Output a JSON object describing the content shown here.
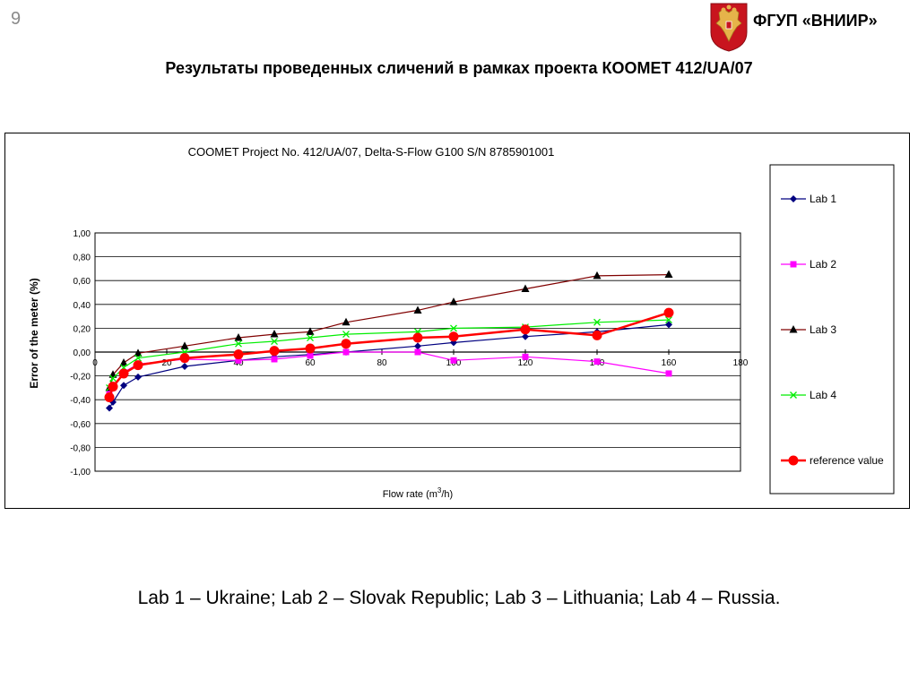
{
  "slide_number": "9",
  "organization": "ФГУП «ВНИИР»",
  "page_title": "Результаты проведенных сличений в рамках проекта КООМЕТ 412/UA/07",
  "footnote": "Lab 1 – Ukraine;  Lab 2 – Slovak Republic; Lab 3 – Lithuania;  Lab 4 – Russia.",
  "chart_data": {
    "type": "line",
    "title": "COOMET Project No. 412/UA/07, Delta-S-Flow G100 S/N 8785901001",
    "xlabel": "Flow rate (m³/h)",
    "xlabel_main": "Flow rate (m",
    "xlabel_sup": "3",
    "xlabel_tail": "/h)",
    "ylabel": "Error of the meter (%)",
    "xlim": [
      0,
      180
    ],
    "ylim": [
      -1.0,
      1.0
    ],
    "x_ticks": [
      0,
      20,
      40,
      60,
      80,
      100,
      120,
      140,
      160,
      180
    ],
    "y_ticks": [
      1.0,
      0.8,
      0.6,
      0.4,
      0.2,
      0.0,
      -0.2,
      -0.4,
      -0.6,
      -0.8,
      -1.0
    ],
    "y_tick_labels": [
      "1,00",
      "0,80",
      "0,60",
      "0,40",
      "0,20",
      "0,00",
      "-0,20",
      "-0,40",
      "-0,60",
      "-0,80",
      "-1,00"
    ],
    "grid": "horizontal",
    "legend_position": "right",
    "series": [
      {
        "name": "Lab 1",
        "color": "#000080",
        "marker": "diamond",
        "x": [
          4,
          5,
          8,
          12,
          25,
          40,
          50,
          60,
          70,
          90,
          100,
          120,
          140,
          160
        ],
        "y": [
          -0.47,
          -0.42,
          -0.28,
          -0.21,
          -0.12,
          -0.07,
          -0.04,
          -0.02,
          0.0,
          0.05,
          0.08,
          0.13,
          0.17,
          0.23
        ]
      },
      {
        "name": "Lab 2",
        "color": "#ff00ff",
        "marker": "square",
        "x": [
          4,
          5,
          8,
          12,
          25,
          40,
          50,
          60,
          70,
          90,
          100,
          120,
          140,
          160
        ],
        "y": [
          -0.35,
          -0.3,
          -0.17,
          -0.1,
          -0.06,
          -0.07,
          -0.06,
          -0.03,
          0.0,
          0.0,
          -0.07,
          -0.04,
          -0.08,
          -0.18
        ]
      },
      {
        "name": "Lab 3",
        "color": "#800000",
        "marker": "triangle",
        "x": [
          4,
          5,
          8,
          12,
          25,
          40,
          50,
          60,
          70,
          90,
          100,
          120,
          140,
          160
        ],
        "y": [
          -0.3,
          -0.19,
          -0.09,
          -0.01,
          0.05,
          0.12,
          0.15,
          0.17,
          0.25,
          0.35,
          0.42,
          0.53,
          0.64,
          0.65
        ]
      },
      {
        "name": "Lab 4",
        "color": "#00ee00",
        "marker": "x",
        "x": [
          4,
          5,
          8,
          12,
          25,
          40,
          50,
          60,
          70,
          90,
          100,
          120,
          140,
          160
        ],
        "y": [
          -0.3,
          -0.22,
          -0.13,
          -0.05,
          0.0,
          0.07,
          0.09,
          0.12,
          0.15,
          0.17,
          0.2,
          0.21,
          0.25,
          0.27
        ]
      },
      {
        "name": "reference value",
        "color": "#ff0000",
        "marker": "circle",
        "x": [
          4,
          5,
          8,
          12,
          25,
          40,
          50,
          60,
          70,
          90,
          100,
          120,
          140,
          160
        ],
        "y": [
          -0.38,
          -0.29,
          -0.18,
          -0.11,
          -0.05,
          -0.02,
          0.01,
          0.03,
          0.07,
          0.12,
          0.13,
          0.19,
          0.14,
          0.33
        ]
      }
    ]
  }
}
